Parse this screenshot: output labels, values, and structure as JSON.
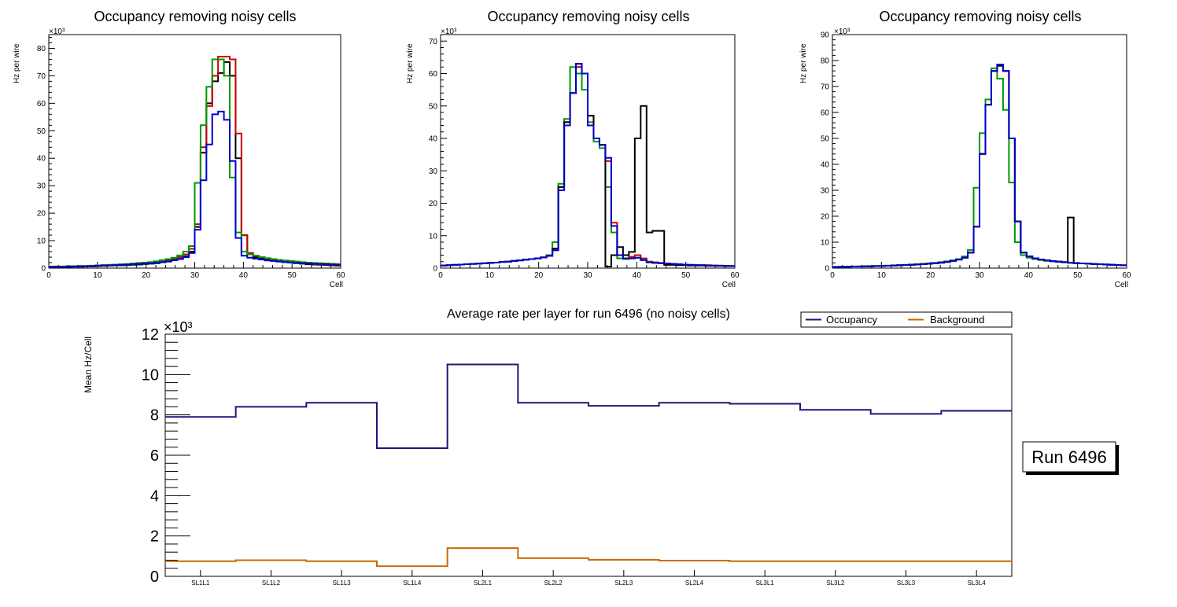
{
  "chart_data": [
    {
      "type": "histogram",
      "title": "Occupancy removing noisy cells",
      "xlabel": "Cell",
      "ylabel": "Hz per wire",
      "y_exponent": "×10³",
      "xlim": [
        0,
        60
      ],
      "ylim": [
        0,
        85
      ],
      "x_ticks": [
        0,
        10,
        20,
        30,
        40,
        50,
        60
      ],
      "y_ticks": [
        0,
        10,
        20,
        30,
        40,
        50,
        60,
        70,
        80
      ],
      "bin_width": 1.2,
      "series": [
        {
          "name": "black",
          "color": "#000000",
          "values": [
            0.3,
            0.4,
            0.4,
            0.4,
            0.5,
            0.5,
            0.6,
            0.6,
            0.7,
            0.8,
            0.9,
            1.0,
            1.0,
            1.1,
            1.2,
            1.3,
            1.5,
            1.6,
            1.8,
            2.1,
            2.4,
            2.9,
            3.4,
            4.3,
            6.0,
            15.0,
            42.0,
            60.0,
            68.0,
            71.0,
            75.0,
            70.0,
            40.0,
            12.0,
            5.0,
            4.0,
            3.5,
            3.0,
            2.7,
            2.4,
            2.2,
            2.0,
            1.8,
            1.6,
            1.4,
            1.3,
            1.2,
            1.1,
            1.0,
            0.9
          ]
        },
        {
          "name": "red",
          "color": "#cc0000",
          "values": [
            0.4,
            0.5,
            0.5,
            0.6,
            0.6,
            0.7,
            0.7,
            0.8,
            0.8,
            0.9,
            1.0,
            1.1,
            1.2,
            1.3,
            1.4,
            1.6,
            1.7,
            1.9,
            2.2,
            2.5,
            2.9,
            3.3,
            4.0,
            5.0,
            7.0,
            16.0,
            44.0,
            59.0,
            70.0,
            77.0,
            77.0,
            76.0,
            49.0,
            12.0,
            5.5,
            4.5,
            4.0,
            3.5,
            3.1,
            2.8,
            2.5,
            2.3,
            2.1,
            1.9,
            1.7,
            1.5,
            1.4,
            1.3,
            1.2,
            1.1
          ]
        },
        {
          "name": "green",
          "color": "#009900",
          "values": [
            0.5,
            0.6,
            0.6,
            0.7,
            0.7,
            0.8,
            0.8,
            0.9,
            1.0,
            1.1,
            1.2,
            1.3,
            1.4,
            1.5,
            1.7,
            1.9,
            2.0,
            2.2,
            2.5,
            2.9,
            3.3,
            3.8,
            4.6,
            6.0,
            8.0,
            31.0,
            52.0,
            66.0,
            76.0,
            76.0,
            70.0,
            33.0,
            13.0,
            6.0,
            5.0,
            4.5,
            4.0,
            3.6,
            3.3,
            3.0,
            2.8,
            2.6,
            2.4,
            2.2,
            2.0,
            1.9,
            1.8,
            1.7,
            1.6,
            1.5
          ]
        },
        {
          "name": "blue",
          "color": "#0000cc",
          "values": [
            0.5,
            0.5,
            0.5,
            0.6,
            0.6,
            0.7,
            0.7,
            0.8,
            0.9,
            1.0,
            1.0,
            1.1,
            1.2,
            1.3,
            1.4,
            1.5,
            1.7,
            1.8,
            2.0,
            2.2,
            2.5,
            2.9,
            3.3,
            4.0,
            5.5,
            14.0,
            32.0,
            45.0,
            56.0,
            57.0,
            54.0,
            39.0,
            11.0,
            4.5,
            3.8,
            3.4,
            3.1,
            2.8,
            2.6,
            2.4,
            2.2,
            2.0,
            1.9,
            1.8,
            1.7,
            1.6,
            1.5,
            1.4,
            1.3,
            1.2
          ]
        }
      ]
    },
    {
      "type": "histogram",
      "title": "Occupancy removing noisy cells",
      "xlabel": "Cell",
      "ylabel": "Hz per wire",
      "y_exponent": "×10³",
      "xlim": [
        0,
        60
      ],
      "ylim": [
        0,
        72
      ],
      "x_ticks": [
        0,
        10,
        20,
        30,
        40,
        50,
        60
      ],
      "y_ticks": [
        0,
        10,
        20,
        30,
        40,
        50,
        60,
        70
      ],
      "bin_width": 1.2,
      "series": [
        {
          "name": "red",
          "color": "#cc0000",
          "values": [
            0.8,
            0.9,
            1.0,
            1.1,
            1.2,
            1.3,
            1.4,
            1.5,
            1.6,
            1.7,
            1.9,
            2.0,
            2.2,
            2.4,
            2.6,
            2.8,
            3.0,
            3.3,
            3.8,
            6.0,
            25.0,
            45.0,
            54.0,
            62.0,
            60.0,
            47.0,
            40.0,
            38.0,
            33.0,
            14.0,
            4.0,
            3.0,
            3.5,
            4.0,
            3.0,
            2.0,
            1.8,
            1.6,
            1.4,
            1.3,
            1.2,
            1.1,
            1.0,
            1.0,
            0.9,
            0.9,
            0.8,
            0.8,
            0.7,
            0.7
          ]
        },
        {
          "name": "green",
          "color": "#009900",
          "values": [
            0.8,
            0.9,
            1.0,
            1.1,
            1.2,
            1.3,
            1.4,
            1.5,
            1.6,
            1.7,
            1.9,
            2.0,
            2.2,
            2.4,
            2.6,
            2.8,
            3.0,
            3.3,
            4.0,
            8.0,
            26.0,
            46.0,
            62.0,
            60.0,
            55.0,
            45.0,
            39.0,
            37.0,
            25.0,
            11.0,
            3.0,
            2.8,
            3.0,
            3.2,
            2.5,
            1.8,
            1.6,
            1.5,
            1.4,
            1.3,
            1.2,
            1.1,
            1.0,
            0.9,
            0.9,
            0.8,
            0.8,
            0.7,
            0.7,
            0.7
          ]
        },
        {
          "name": "black",
          "color": "#000000",
          "values": [
            0.8,
            0.9,
            1.0,
            1.1,
            1.2,
            1.3,
            1.4,
            1.5,
            1.6,
            1.7,
            1.9,
            2.0,
            2.2,
            2.4,
            2.6,
            2.8,
            3.0,
            3.3,
            3.8,
            6.0,
            25.0,
            45.0,
            54.0,
            63.0,
            60.0,
            47.0,
            40.0,
            38.0,
            0.5,
            4.0,
            6.5,
            4.0,
            5.0,
            40.0,
            50.0,
            11.0,
            11.5,
            11.5,
            1.0,
            1.0,
            0.9,
            0.9,
            0.8,
            0.8,
            0.8,
            0.7,
            0.7,
            0.7,
            0.6,
            0.6
          ]
        },
        {
          "name": "blue",
          "color": "#0000cc",
          "values": [
            0.8,
            0.9,
            1.0,
            1.1,
            1.2,
            1.3,
            1.4,
            1.5,
            1.6,
            1.7,
            1.9,
            2.0,
            2.2,
            2.4,
            2.6,
            2.8,
            3.0,
            3.3,
            3.8,
            5.5,
            24.0,
            44.0,
            54.0,
            63.0,
            60.0,
            44.0,
            40.0,
            38.0,
            34.0,
            13.0,
            4.0,
            3.0,
            3.0,
            3.2,
            2.5,
            1.8,
            1.6,
            1.5,
            1.4,
            1.3,
            1.2,
            1.1,
            1.0,
            0.9,
            0.9,
            0.8,
            0.8,
            0.7,
            0.7,
            0.6
          ]
        }
      ]
    },
    {
      "type": "histogram",
      "title": "Occupancy removing noisy cells",
      "xlabel": "Cell",
      "ylabel": "Hz per wire",
      "y_exponent": "×10³",
      "xlim": [
        0,
        60
      ],
      "ylim": [
        0,
        90
      ],
      "x_ticks": [
        0,
        10,
        20,
        30,
        40,
        50,
        60
      ],
      "y_ticks": [
        0,
        10,
        20,
        30,
        40,
        50,
        60,
        70,
        80,
        90
      ],
      "bin_width": 1.2,
      "series": [
        {
          "name": "red",
          "color": "#cc0000",
          "values": [
            0.4,
            0.5,
            0.5,
            0.6,
            0.6,
            0.7,
            0.7,
            0.8,
            0.8,
            0.9,
            1.0,
            1.1,
            1.2,
            1.3,
            1.4,
            1.5,
            1.7,
            1.9,
            2.1,
            2.4,
            2.8,
            3.3,
            4.0,
            6.0,
            16.0,
            44.0,
            63.0,
            76.0,
            78.0,
            76.0,
            50.0,
            18.0,
            6.0,
            4.5,
            3.8,
            3.3,
            3.0,
            2.7,
            2.5,
            2.3,
            2.1,
            1.9,
            1.8,
            1.7,
            1.6,
            1.5,
            1.4,
            1.3,
            1.2,
            1.1
          ]
        },
        {
          "name": "green",
          "color": "#009900",
          "values": [
            0.5,
            0.5,
            0.6,
            0.6,
            0.7,
            0.7,
            0.8,
            0.8,
            0.9,
            1.0,
            1.1,
            1.2,
            1.3,
            1.4,
            1.5,
            1.7,
            1.8,
            2.0,
            2.3,
            2.6,
            3.0,
            3.5,
            4.5,
            7.0,
            31.0,
            52.0,
            65.0,
            77.0,
            73.0,
            61.0,
            33.0,
            10.0,
            5.0,
            4.0,
            3.5,
            3.1,
            2.8,
            2.6,
            2.4,
            2.2,
            2.0,
            1.9,
            1.8,
            1.7,
            1.6,
            1.5,
            1.4,
            1.3,
            1.2,
            1.1
          ]
        },
        {
          "name": "black",
          "color": "#000000",
          "values": [
            0.4,
            0.5,
            0.5,
            0.6,
            0.6,
            0.7,
            0.7,
            0.8,
            0.8,
            0.9,
            1.0,
            1.1,
            1.2,
            1.3,
            1.4,
            1.5,
            1.7,
            1.9,
            2.1,
            2.4,
            2.8,
            3.3,
            4.0,
            6.0,
            16.0,
            44.0,
            63.0,
            76.0,
            78.0,
            76.0,
            50.0,
            18.0,
            6.0,
            4.5,
            3.8,
            3.3,
            3.0,
            2.7,
            2.5,
            2.3,
            19.5,
            1.9,
            1.8,
            1.7,
            1.6,
            1.5,
            1.4,
            1.3,
            1.2,
            1.1
          ]
        },
        {
          "name": "blue",
          "color": "#0000cc",
          "values": [
            0.4,
            0.5,
            0.5,
            0.6,
            0.6,
            0.7,
            0.7,
            0.8,
            0.8,
            0.9,
            1.0,
            1.1,
            1.2,
            1.3,
            1.4,
            1.5,
            1.7,
            1.9,
            2.1,
            2.4,
            2.8,
            3.3,
            4.0,
            6.0,
            16.0,
            44.0,
            63.0,
            76.0,
            78.5,
            76.0,
            50.0,
            18.0,
            6.0,
            4.5,
            3.8,
            3.3,
            3.0,
            2.7,
            2.5,
            2.3,
            2.1,
            1.9,
            1.8,
            1.7,
            1.6,
            1.5,
            1.4,
            1.3,
            1.2,
            1.1
          ]
        }
      ]
    },
    {
      "type": "histogram",
      "title": "Average rate per layer for run 6496 (no noisy cells)",
      "xlabel": "",
      "ylabel": "Mean Hz/Cell",
      "y_exponent": "×10³",
      "ylim": [
        0,
        12
      ],
      "y_ticks": [
        0,
        2,
        4,
        6,
        8,
        10,
        12
      ],
      "categories": [
        "SL1L1",
        "SL1L2",
        "SL1L3",
        "SL1L4",
        "SL2L1",
        "SL2L2",
        "SL2L3",
        "SL2L4",
        "SL3L1",
        "SL3L2",
        "SL3L3",
        "SL3L4"
      ],
      "series": [
        {
          "name": "Occupancy",
          "color": "#2a0f7a",
          "values": [
            7.9,
            8.4,
            8.6,
            6.35,
            10.5,
            8.6,
            8.45,
            8.6,
            8.55,
            8.25,
            8.05,
            8.2
          ]
        },
        {
          "name": "Background",
          "color": "#cc6a00",
          "values": [
            0.75,
            0.8,
            0.75,
            0.5,
            1.4,
            0.9,
            0.82,
            0.78,
            0.75,
            0.75,
            0.75,
            0.75
          ]
        }
      ],
      "legend": {
        "position": "top-right",
        "entries": [
          "Occupancy",
          "Background"
        ]
      }
    }
  ],
  "run_label": "Run 6496"
}
